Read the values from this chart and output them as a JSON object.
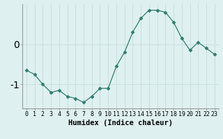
{
  "x": [
    0,
    1,
    2,
    3,
    4,
    5,
    6,
    7,
    8,
    9,
    10,
    11,
    12,
    13,
    14,
    15,
    16,
    17,
    18,
    19,
    20,
    21,
    22,
    23
  ],
  "y": [
    -0.65,
    -0.75,
    -1.0,
    -1.2,
    -1.15,
    -1.3,
    -1.35,
    -1.45,
    -1.3,
    -1.1,
    -1.1,
    -0.55,
    -0.2,
    0.3,
    0.65,
    0.85,
    0.85,
    0.8,
    0.55,
    0.15,
    -0.15,
    0.05,
    -0.1,
    -0.25
  ],
  "line_color": "#2e7d6e",
  "marker": "D",
  "marker_size": 2.5,
  "background_color": "#dff0f0",
  "grid_color": "#c8dede",
  "xlabel": "Humidex (Indice chaleur)",
  "ylabel": "",
  "xlim": [
    -0.5,
    23.5
  ],
  "ylim": [
    -1.6,
    1.0
  ],
  "yticks": [
    -1,
    0
  ],
  "xticks": [
    0,
    1,
    2,
    3,
    4,
    5,
    6,
    7,
    8,
    9,
    10,
    11,
    12,
    13,
    14,
    15,
    16,
    17,
    18,
    19,
    20,
    21,
    22,
    23
  ],
  "tick_fontsize": 6,
  "xlabel_fontsize": 7.5
}
